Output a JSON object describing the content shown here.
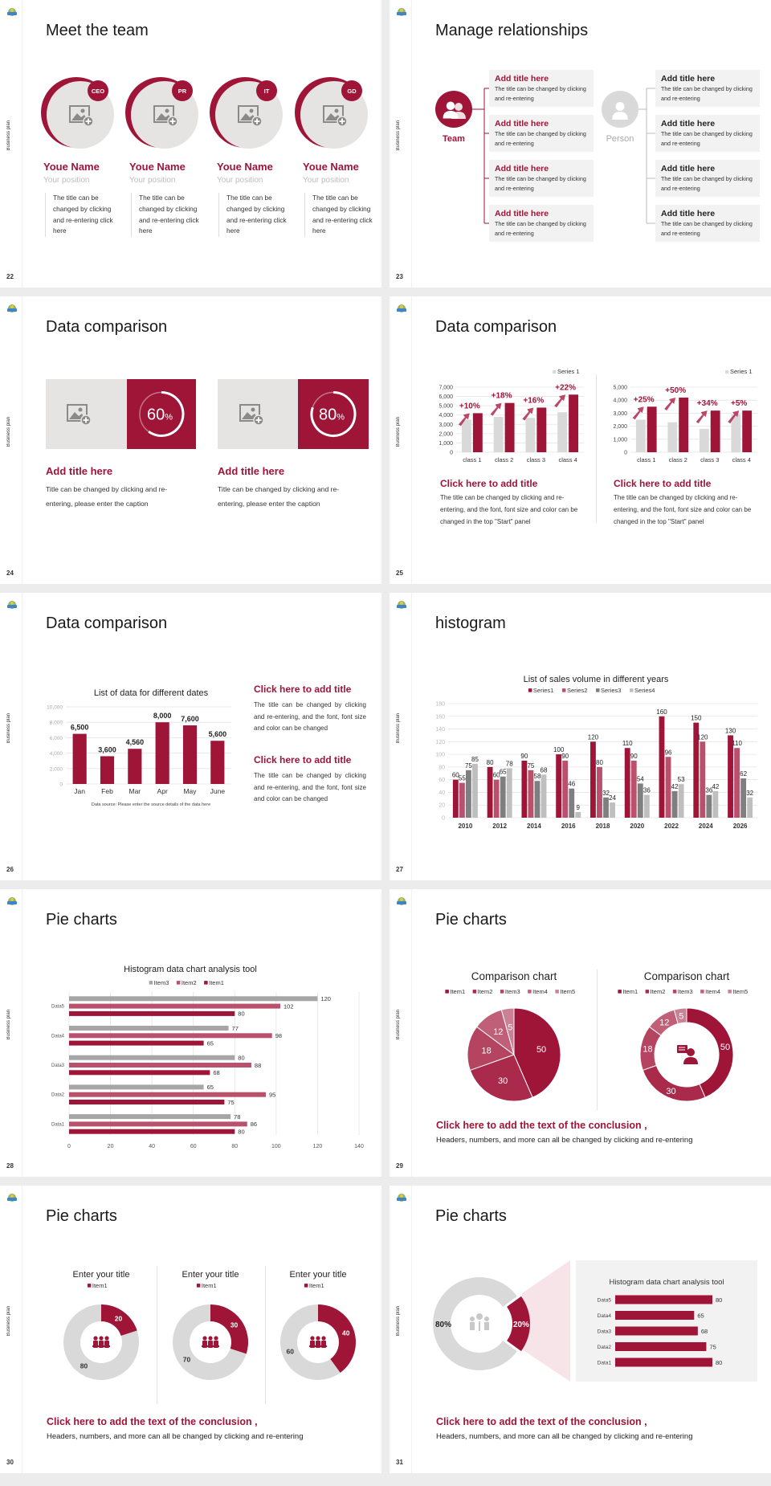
{
  "colors": {
    "accent": "#9e1538",
    "accent2": "#b9506c",
    "gray": "#d9d9d9",
    "dark_gray": "#7f7f7f",
    "light_gray": "#bfbfbf",
    "mid_gray": "#a6a6a6",
    "panel": "#f2f2f2"
  },
  "side_label": "Business plan",
  "slides": {
    "s22": {
      "page": "22",
      "title": "Meet the team",
      "members": [
        {
          "badge": "CEO",
          "name": "Youe Name",
          "position": "Your position",
          "desc": "The title can be changed by clicking and re-entering click here",
          "icon": "image-placeholder-icon"
        },
        {
          "badge": "PR",
          "name": "Youe Name",
          "position": "Your position",
          "desc": "The title can be changed by clicking and re-entering click here",
          "icon": "image-placeholder-icon"
        },
        {
          "badge": "IT",
          "name": "Youe Name",
          "position": "Your position",
          "desc": "The title can be changed by clicking and re-entering click here",
          "icon": "image-placeholder-icon"
        },
        {
          "badge": "GD",
          "name": "Youe Name",
          "position": "Your position",
          "desc": "The title can be changed by clicking and re-entering click here",
          "icon": "image-placeholder-icon"
        }
      ]
    },
    "s23": {
      "page": "23",
      "title": "Manage relationships",
      "team_label": "Team",
      "person_label": "Person",
      "team_items": [
        {
          "title": "Add title here",
          "text": "The title can be changed by clicking and re-entering"
        },
        {
          "title": "Add title here",
          "text": "The title can be changed by clicking and re-entering"
        },
        {
          "title": "Add title here",
          "text": "The title can be changed by clicking and re-entering"
        },
        {
          "title": "Add title here",
          "text": "The title can be changed by clicking and re-entering"
        }
      ],
      "person_items": [
        {
          "title": "Add title here",
          "text": "The title can be changed by clicking and re-entering"
        },
        {
          "title": "Add title here",
          "text": "The title can be changed by clicking and re-entering"
        },
        {
          "title": "Add title here",
          "text": "The title can be changed by clicking and re-entering"
        },
        {
          "title": "Add title here",
          "text": "The title can be changed by clicking and re-entering"
        }
      ]
    },
    "s24": {
      "page": "24",
      "title": "Data comparison",
      "cards": [
        {
          "number": "60",
          "unit": "%",
          "progress": 60,
          "title": "Add title here",
          "text": "Title can be changed by clicking and re-entering, please enter the caption"
        },
        {
          "number": "80",
          "unit": "%",
          "progress": 80,
          "title": "Add title here",
          "text": "Title can be changed by clicking and re-entering, please enter the caption"
        }
      ]
    },
    "s25": {
      "page": "25",
      "title": "Data comparison",
      "panels": [
        {
          "title": "Click here to add title",
          "text": "The title can be changed by clicking and re-entering, and the font, font size and color can be changed in the top \"Start\" panel"
        },
        {
          "title": "Click here to add title",
          "text": "The title can be changed by clicking and re-entering, and the font, font size and color can be changed in the top \"Start\" panel"
        }
      ]
    },
    "s26": {
      "page": "26",
      "title": "Data comparison",
      "blocks": [
        {
          "title": "Click here to add title",
          "text": "The title can be changed by clicking and re-entering, and the font, font size and color can be changed"
        },
        {
          "title": "Click here to add title",
          "text": "The title can be changed by clicking and re-entering, and the font, font size and color can be changed"
        }
      ]
    },
    "s27": {
      "page": "27",
      "title": "histogram"
    },
    "s28": {
      "page": "28",
      "title": "Pie charts"
    },
    "s29": {
      "page": "29",
      "title": "Pie charts",
      "conclusion": "Click here to add the text of the conclusion ,",
      "sub": "Headers, numbers, and more can all be changed by clicking and re-entering"
    },
    "s30": {
      "page": "30",
      "title": "Pie charts",
      "conclusion": "Click here to add the text of the conclusion ,",
      "sub": "Headers, numbers, and more can all be changed by clicking and re-entering"
    },
    "s31": {
      "page": "31",
      "title": "Pie charts",
      "conclusion": "Click here to add the text of the conclusion ,",
      "sub": "Headers, numbers, and more can all be changed by clicking and re-entering"
    }
  },
  "chart_data": [
    {
      "id": "s25-left",
      "type": "bar",
      "categories": [
        "class 1",
        "class 2",
        "class 3",
        "class 4"
      ],
      "ylim": [
        0,
        7000
      ],
      "ytick_step": 1000,
      "grid": true,
      "legend": "top-right",
      "series": [
        {
          "name": "Series 1",
          "color": "#d9d9d9",
          "values": [
            3500,
            3800,
            3700,
            4300
          ]
        },
        {
          "color": "#9e1538",
          "values": [
            4200,
            5300,
            4800,
            6200
          ]
        }
      ],
      "annotations": [
        "+10%",
        "+18%",
        "+16%",
        "+22%"
      ]
    },
    {
      "id": "s25-right",
      "type": "bar",
      "categories": [
        "class 1",
        "class 2",
        "class 3",
        "class 4"
      ],
      "ylim": [
        0,
        5000
      ],
      "ytick_step": 1000,
      "grid": true,
      "legend": "top-right",
      "series": [
        {
          "name": "Series 1",
          "color": "#d9d9d9",
          "values": [
            2500,
            2300,
            1800,
            2900
          ]
        },
        {
          "color": "#9e1538",
          "values": [
            3500,
            4200,
            3200,
            3200
          ]
        }
      ],
      "annotations": [
        "+25%",
        "+50%",
        "+34%",
        "+5%"
      ]
    },
    {
      "id": "s26",
      "type": "bar",
      "title": "List of data for different dates",
      "categories": [
        "Jan",
        "Feb",
        "Mar",
        "Apr",
        "May",
        "June"
      ],
      "ylim": [
        0,
        10000
      ],
      "ytick_step": 2000,
      "grid": true,
      "series": [
        {
          "color": "#9e1538",
          "values": [
            6500,
            3600,
            4560,
            8000,
            7600,
            5600
          ]
        }
      ],
      "note": "Data source: Please enter the source details of the data here"
    },
    {
      "id": "s27",
      "type": "bar",
      "title": "List of sales volume in different years",
      "categories": [
        "2010",
        "2012",
        "2014",
        "2016",
        "2018",
        "2020",
        "2022",
        "2024",
        "2026"
      ],
      "ylim": [
        0,
        180
      ],
      "ytick_step": 20,
      "grid": true,
      "legend": "top",
      "series": [
        {
          "name": "Series1",
          "color": "#9e1538",
          "values": [
            60,
            80,
            90,
            100,
            120,
            110,
            160,
            150,
            130
          ]
        },
        {
          "name": "Series2",
          "color": "#b9506c",
          "values": [
            55,
            60,
            75,
            90,
            80,
            90,
            96,
            120,
            110
          ]
        },
        {
          "name": "Series3",
          "color": "#7f7f7f",
          "values": [
            75,
            65,
            58,
            46,
            32,
            54,
            42,
            36,
            62
          ]
        },
        {
          "name": "Series4",
          "color": "#bfbfbf",
          "values": [
            85,
            78,
            68,
            9,
            24,
            36,
            53,
            42,
            32
          ]
        }
      ]
    },
    {
      "id": "s28",
      "type": "hbar",
      "title": "Histogram data chart analysis tool",
      "categories": [
        "Data1",
        "Data2",
        "Data3",
        "Data4",
        "Data5"
      ],
      "xlim": [
        0,
        140
      ],
      "xtick_step": 20,
      "grid": true,
      "legend": "top",
      "series": [
        {
          "name": "Item3",
          "color": "#a6a6a6",
          "values": [
            78,
            65,
            80,
            77,
            120
          ]
        },
        {
          "name": "Item2",
          "color": "#b9506c",
          "values": [
            86,
            95,
            88,
            98,
            102
          ]
        },
        {
          "name": "Item1",
          "color": "#9e1538",
          "values": [
            80,
            75,
            68,
            65,
            80
          ]
        }
      ]
    },
    {
      "id": "s29-pie",
      "type": "pie",
      "title": "Comparison chart",
      "legend": "top",
      "labels": [
        "Item1",
        "Item2",
        "Item3",
        "Item4",
        "Item5"
      ],
      "values": [
        50,
        30,
        18,
        12,
        5
      ],
      "colors": [
        "#9e1538",
        "#aa2a4c",
        "#b4445f",
        "#bf5f78",
        "#cb8195"
      ]
    },
    {
      "id": "s29-donut",
      "type": "pie",
      "title": "Comparison chart",
      "legend": "top",
      "labels": [
        "Item1",
        "Item2",
        "Item3",
        "Item4",
        "Item5"
      ],
      "values": [
        50,
        30,
        18,
        12,
        5
      ],
      "colors": [
        "#9e1538",
        "#aa2a4c",
        "#b4445f",
        "#bf5f78",
        "#cb8195"
      ],
      "center_icon": "customer-service-icon"
    },
    {
      "id": "s30-a",
      "type": "pie",
      "title": "Enter your title",
      "legend_label": "Item1",
      "values": [
        20,
        80
      ],
      "colors": [
        "#9e1538",
        "#d9d9d9"
      ],
      "center_icon": "team-icon"
    },
    {
      "id": "s30-b",
      "type": "pie",
      "title": "Enter your title",
      "legend_label": "Item1",
      "values": [
        30,
        70
      ],
      "colors": [
        "#9e1538",
        "#d9d9d9"
      ],
      "center_icon": "team-icon"
    },
    {
      "id": "s30-c",
      "type": "pie",
      "title": "Enter your title",
      "legend_label": "Item1",
      "values": [
        40,
        60
      ],
      "colors": [
        "#9e1538",
        "#d9d9d9"
      ],
      "center_icon": "team-icon"
    },
    {
      "id": "s31-donut",
      "type": "pie",
      "values": [
        20,
        80
      ],
      "labels": [
        "20%",
        "80%"
      ],
      "colors": [
        "#9e1538",
        "#d9d9d9"
      ],
      "center_icon": "meeting-icon"
    },
    {
      "id": "s31-bar",
      "type": "hbar",
      "title": "Histogram data chart analysis tool",
      "categories": [
        "Data1",
        "Data2",
        "Data3",
        "Data4",
        "Data5"
      ],
      "series": [
        {
          "color": "#9e1538",
          "values": [
            80,
            75,
            68,
            65,
            80
          ]
        }
      ]
    }
  ]
}
